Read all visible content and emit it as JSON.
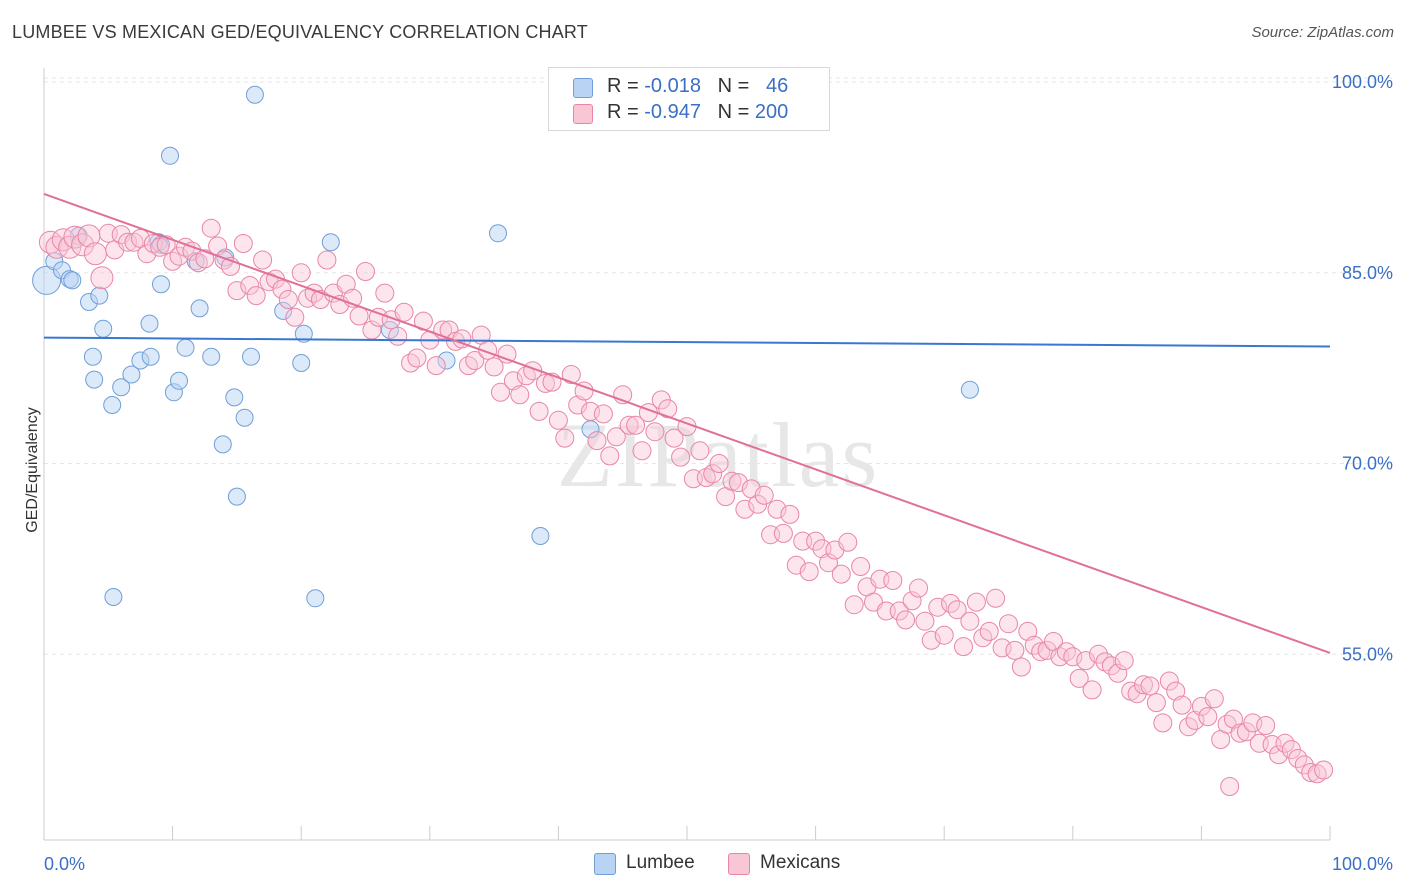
{
  "title": "LUMBEE VS MEXICAN GED/EQUIVALENCY CORRELATION CHART",
  "source": "Source: ZipAtlas.com",
  "watermark": "ZIPatlas",
  "legend_top": [
    {
      "prefix": "R =",
      "r": "-0.018",
      "nlabel": "N =",
      "n": "46",
      "fill": "#b8d3f4",
      "stroke": "#6f9fd8"
    },
    {
      "prefix": "R =",
      "r": "-0.947",
      "nlabel": "N =",
      "n": "200",
      "fill": "#f9c6d6",
      "stroke": "#e986a6"
    }
  ],
  "legend_bottom": [
    {
      "label": "Lumbee",
      "fill": "#b8d3f4",
      "stroke": "#6f9fd8"
    },
    {
      "label": "Mexicans",
      "fill": "#f9c6d6",
      "stroke": "#e986a6"
    }
  ],
  "colors": {
    "blue_line": "#3a78d0",
    "pink_line": "#e0709a",
    "tick_blue": "#3a6fc6"
  },
  "chart_data": {
    "type": "scatter",
    "title": "LUMBEE VS MEXICAN GED/EQUIVALENCY CORRELATION CHART",
    "xlabel": "",
    "ylabel": "GED/Equivalency",
    "xlim": [
      0,
      100
    ],
    "ylim": [
      40,
      100
    ],
    "x_ticks": [
      "0.0%",
      "100.0%"
    ],
    "y_ticks": [
      {
        "value": 100,
        "label": "100.0%"
      },
      {
        "value": 85,
        "label": "85.0%"
      },
      {
        "value": 70,
        "label": "70.0%"
      },
      {
        "value": 55,
        "label": "55.0%"
      }
    ],
    "grid": true,
    "legend_position": "top-center",
    "series": [
      {
        "name": "Lumbee",
        "r": -0.018,
        "n": 46,
        "trend": [
          [
            0,
            79.9
          ],
          [
            100,
            79.2
          ]
        ],
        "points": [
          [
            0.2,
            84.4
          ],
          [
            0.8,
            85.9
          ],
          [
            1.4,
            85.2
          ],
          [
            2.0,
            84.5
          ],
          [
            2.2,
            84.4
          ],
          [
            2.7,
            87.9
          ],
          [
            3.5,
            82.7
          ],
          [
            4.3,
            83.2
          ],
          [
            4.6,
            80.6
          ],
          [
            3.8,
            78.4
          ],
          [
            3.9,
            76.6
          ],
          [
            5.3,
            74.6
          ],
          [
            6.0,
            76.0
          ],
          [
            6.8,
            77.0
          ],
          [
            7.5,
            78.1
          ],
          [
            8.2,
            81.0
          ],
          [
            8.9,
            87.4
          ],
          [
            9.1,
            87.2
          ],
          [
            8.3,
            78.4
          ],
          [
            9.1,
            84.1
          ],
          [
            10.1,
            75.6
          ],
          [
            10.5,
            76.5
          ],
          [
            12.1,
            82.2
          ],
          [
            13.0,
            78.4
          ],
          [
            14.1,
            86.2
          ],
          [
            14.8,
            75.2
          ],
          [
            15.0,
            67.4
          ],
          [
            15.6,
            73.6
          ],
          [
            16.1,
            78.4
          ],
          [
            18.6,
            82.0
          ],
          [
            20.0,
            77.9
          ],
          [
            20.2,
            80.2
          ],
          [
            21.1,
            59.4
          ],
          [
            22.3,
            87.4
          ],
          [
            11.8,
            85.9
          ],
          [
            11.0,
            79.1
          ],
          [
            13.9,
            71.5
          ],
          [
            16.4,
            99.0
          ],
          [
            5.4,
            59.5
          ],
          [
            9.8,
            94.2
          ],
          [
            26.9,
            80.5
          ],
          [
            31.3,
            78.1
          ],
          [
            35.3,
            88.1
          ],
          [
            38.6,
            64.3
          ],
          [
            42.5,
            72.7
          ],
          [
            72.0,
            75.8
          ]
        ]
      },
      {
        "name": "Mexicans",
        "r": -0.947,
        "n": 200,
        "trend": [
          [
            0,
            91.2
          ],
          [
            100,
            55.1
          ]
        ],
        "points": [
          [
            0.5,
            87.4
          ],
          [
            1.0,
            87.0
          ],
          [
            1.5,
            87.6
          ],
          [
            2.0,
            87.0
          ],
          [
            2.4,
            87.8
          ],
          [
            3.0,
            87.2
          ],
          [
            3.5,
            87.9
          ],
          [
            4.0,
            86.5
          ],
          [
            4.5,
            84.6
          ],
          [
            5.0,
            88.1
          ],
          [
            5.5,
            86.8
          ],
          [
            6.0,
            88.0
          ],
          [
            6.5,
            87.4
          ],
          [
            7.0,
            87.4
          ],
          [
            7.5,
            87.7
          ],
          [
            8.0,
            86.5
          ],
          [
            8.5,
            87.3
          ],
          [
            9.0,
            87.0
          ],
          [
            9.5,
            87.2
          ],
          [
            10.0,
            85.9
          ],
          [
            10.5,
            86.3
          ],
          [
            11.0,
            87.0
          ],
          [
            11.5,
            86.7
          ],
          [
            12.0,
            85.8
          ],
          [
            12.5,
            86.1
          ],
          [
            13.0,
            88.5
          ],
          [
            13.5,
            87.1
          ],
          [
            14.0,
            86.0
          ],
          [
            14.5,
            85.5
          ],
          [
            15.0,
            83.6
          ],
          [
            15.5,
            87.3
          ],
          [
            16.0,
            84.0
          ],
          [
            16.5,
            83.2
          ],
          [
            17.0,
            86.0
          ],
          [
            17.5,
            84.3
          ],
          [
            18.0,
            84.5
          ],
          [
            18.5,
            83.7
          ],
          [
            19.0,
            82.9
          ],
          [
            19.5,
            81.5
          ],
          [
            20.0,
            85.0
          ],
          [
            20.5,
            83.0
          ],
          [
            21.0,
            83.4
          ],
          [
            21.5,
            82.9
          ],
          [
            22.0,
            86.0
          ],
          [
            22.5,
            83.4
          ],
          [
            23.0,
            82.5
          ],
          [
            23.5,
            84.1
          ],
          [
            24.0,
            83.0
          ],
          [
            24.5,
            81.6
          ],
          [
            25.0,
            85.1
          ],
          [
            25.5,
            80.5
          ],
          [
            26.0,
            81.5
          ],
          [
            26.5,
            83.4
          ],
          [
            27.0,
            81.3
          ],
          [
            27.5,
            80.0
          ],
          [
            28.0,
            81.9
          ],
          [
            28.5,
            77.9
          ],
          [
            29.0,
            78.3
          ],
          [
            29.5,
            81.2
          ],
          [
            30.0,
            79.7
          ],
          [
            30.5,
            77.7
          ],
          [
            31.0,
            80.5
          ],
          [
            31.5,
            80.5
          ],
          [
            32.0,
            79.6
          ],
          [
            32.5,
            79.8
          ],
          [
            33.0,
            77.7
          ],
          [
            33.5,
            78.1
          ],
          [
            34.0,
            80.1
          ],
          [
            34.5,
            78.9
          ],
          [
            35.0,
            77.6
          ],
          [
            35.5,
            75.6
          ],
          [
            36.0,
            78.6
          ],
          [
            36.5,
            76.5
          ],
          [
            37.0,
            75.4
          ],
          [
            37.5,
            76.9
          ],
          [
            38.0,
            77.3
          ],
          [
            38.5,
            74.1
          ],
          [
            39.0,
            76.3
          ],
          [
            39.5,
            76.4
          ],
          [
            40.0,
            73.4
          ],
          [
            40.5,
            72.0
          ],
          [
            41.0,
            77.0
          ],
          [
            41.5,
            74.6
          ],
          [
            42.0,
            75.7
          ],
          [
            42.5,
            74.1
          ],
          [
            43.0,
            71.8
          ],
          [
            43.5,
            73.9
          ],
          [
            44.0,
            70.6
          ],
          [
            44.5,
            72.1
          ],
          [
            45.0,
            75.4
          ],
          [
            45.5,
            73.0
          ],
          [
            46.0,
            73.0
          ],
          [
            46.5,
            71.0
          ],
          [
            47.0,
            74.0
          ],
          [
            47.5,
            72.5
          ],
          [
            48.0,
            75.0
          ],
          [
            48.5,
            74.3
          ],
          [
            49.0,
            72.0
          ],
          [
            49.5,
            70.5
          ],
          [
            50.0,
            72.9
          ],
          [
            50.5,
            68.8
          ],
          [
            51.0,
            71.0
          ],
          [
            51.5,
            68.9
          ],
          [
            52.0,
            69.2
          ],
          [
            52.5,
            70.0
          ],
          [
            53.0,
            67.4
          ],
          [
            53.5,
            68.6
          ],
          [
            54.0,
            68.5
          ],
          [
            54.5,
            66.4
          ],
          [
            55.0,
            68.0
          ],
          [
            55.5,
            66.8
          ],
          [
            56.0,
            67.5
          ],
          [
            56.5,
            64.4
          ],
          [
            57.0,
            66.4
          ],
          [
            57.5,
            64.5
          ],
          [
            58.0,
            66.0
          ],
          [
            58.5,
            62.0
          ],
          [
            59.0,
            63.9
          ],
          [
            59.5,
            61.5
          ],
          [
            60.0,
            63.9
          ],
          [
            60.5,
            63.3
          ],
          [
            61.0,
            62.2
          ],
          [
            61.5,
            63.2
          ],
          [
            62.0,
            61.3
          ],
          [
            62.5,
            63.8
          ],
          [
            63.0,
            58.9
          ],
          [
            63.5,
            61.9
          ],
          [
            64.0,
            60.3
          ],
          [
            64.5,
            59.1
          ],
          [
            65.0,
            60.9
          ],
          [
            65.5,
            58.4
          ],
          [
            66.0,
            60.8
          ],
          [
            66.5,
            58.4
          ],
          [
            67.0,
            57.7
          ],
          [
            67.5,
            59.2
          ],
          [
            68.0,
            60.2
          ],
          [
            68.5,
            57.6
          ],
          [
            69.0,
            56.1
          ],
          [
            69.5,
            58.7
          ],
          [
            70.0,
            56.5
          ],
          [
            70.5,
            59.0
          ],
          [
            71.0,
            58.5
          ],
          [
            71.5,
            55.6
          ],
          [
            72.0,
            57.6
          ],
          [
            72.5,
            59.1
          ],
          [
            73.0,
            56.3
          ],
          [
            73.5,
            56.8
          ],
          [
            74.0,
            59.4
          ],
          [
            74.5,
            55.5
          ],
          [
            75.0,
            57.4
          ],
          [
            75.5,
            55.3
          ],
          [
            76.0,
            54.0
          ],
          [
            76.5,
            56.8
          ],
          [
            77.0,
            55.7
          ],
          [
            77.5,
            55.2
          ],
          [
            78.0,
            55.3
          ],
          [
            78.5,
            56.0
          ],
          [
            79.0,
            54.8
          ],
          [
            79.5,
            55.2
          ],
          [
            80.0,
            54.8
          ],
          [
            80.5,
            53.1
          ],
          [
            81.0,
            54.5
          ],
          [
            81.5,
            52.2
          ],
          [
            82.0,
            55.0
          ],
          [
            82.5,
            54.4
          ],
          [
            83.0,
            54.1
          ],
          [
            83.5,
            53.5
          ],
          [
            84.0,
            54.5
          ],
          [
            84.5,
            52.1
          ],
          [
            85.0,
            51.9
          ],
          [
            85.5,
            52.6
          ],
          [
            86.0,
            52.5
          ],
          [
            86.5,
            51.2
          ],
          [
            87.0,
            49.6
          ],
          [
            87.5,
            52.9
          ],
          [
            88.0,
            52.1
          ],
          [
            88.5,
            51.0
          ],
          [
            89.0,
            49.3
          ],
          [
            89.5,
            49.8
          ],
          [
            90.0,
            50.9
          ],
          [
            90.5,
            50.1
          ],
          [
            91.0,
            51.5
          ],
          [
            91.5,
            48.3
          ],
          [
            92.0,
            49.5
          ],
          [
            92.5,
            49.9
          ],
          [
            93.0,
            48.8
          ],
          [
            93.5,
            48.9
          ],
          [
            94.0,
            49.6
          ],
          [
            94.5,
            48.0
          ],
          [
            95.0,
            49.4
          ],
          [
            95.5,
            47.9
          ],
          [
            96.0,
            47.1
          ],
          [
            96.5,
            48.0
          ],
          [
            97.0,
            47.5
          ],
          [
            97.5,
            46.8
          ],
          [
            98.0,
            46.3
          ],
          [
            98.5,
            45.7
          ],
          [
            99.0,
            45.6
          ],
          [
            99.5,
            45.9
          ],
          [
            92.2,
            44.6
          ]
        ]
      }
    ]
  }
}
